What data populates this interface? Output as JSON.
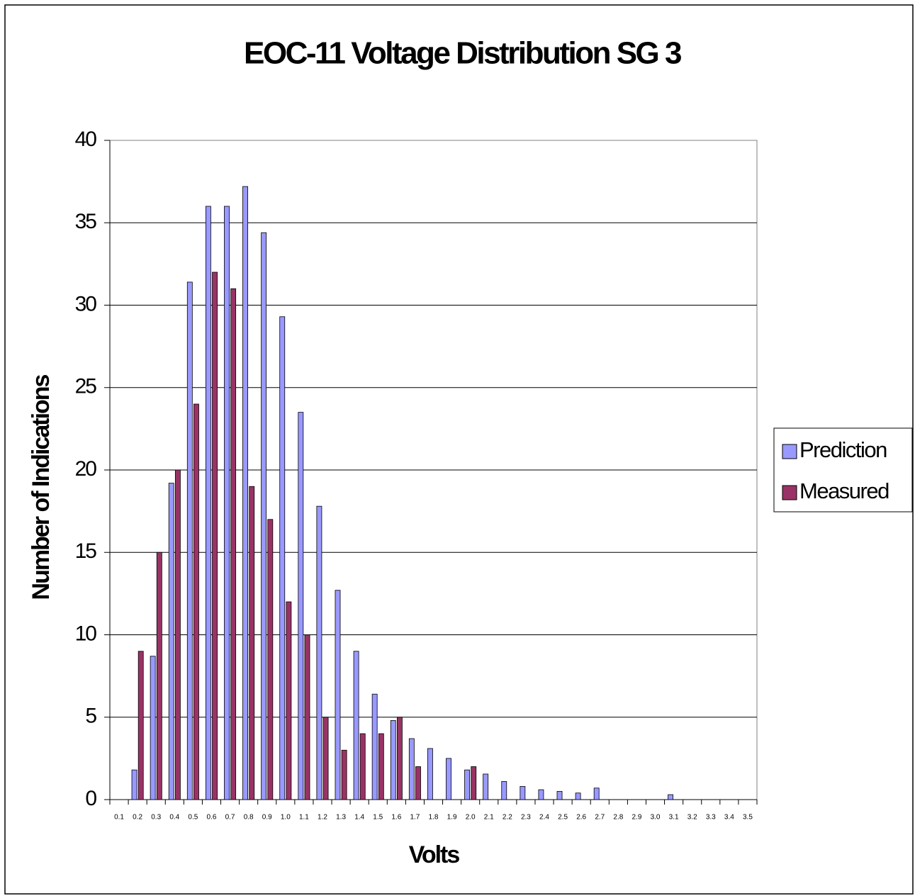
{
  "chart_data": {
    "type": "bar",
    "title": "EOC-11 Voltage Distribution SG 3",
    "x_label": "Volts",
    "y_label": "Number of Indications",
    "categories": [
      "0.1",
      "0.2",
      "0.3",
      "0.4",
      "0.5",
      "0.6",
      "0.7",
      "0.8",
      "0.9",
      "1.0",
      "1.1",
      "1.2",
      "1.3",
      "1.4",
      "1.5",
      "1.6",
      "1.7",
      "1.8",
      "1.9",
      "2.0",
      "2.1",
      "2.2",
      "2.3",
      "2.4",
      "2.5",
      "2.6",
      "2.7",
      "2.8",
      "2.9",
      "3.0",
      "3.1",
      "3.2",
      "3.3",
      "3.4",
      "3.5"
    ],
    "series": [
      {
        "name": "Prediction",
        "color": "#9999ff",
        "values": [
          0,
          1.8,
          8.7,
          19.2,
          31.4,
          36,
          36,
          37.2,
          34.4,
          29.3,
          23.5,
          17.8,
          12.7,
          9,
          6.4,
          4.8,
          3.7,
          3.1,
          2.5,
          1.8,
          1.55,
          1.1,
          0.8,
          0.6,
          0.5,
          0.4,
          0.7,
          0,
          0,
          0,
          0.3,
          0,
          0,
          0,
          0
        ]
      },
      {
        "name": "Measured",
        "color": "#993366",
        "values": [
          0,
          9,
          15,
          20,
          24,
          32,
          31,
          19,
          17,
          12,
          10,
          5,
          3,
          4,
          4,
          5,
          2,
          0,
          0,
          2,
          0,
          0,
          0,
          0,
          0,
          0,
          0,
          0,
          0,
          0,
          0,
          0,
          0,
          0,
          0
        ]
      }
    ],
    "ylim": [
      0,
      40
    ],
    "yticks": [
      0,
      5,
      10,
      15,
      20,
      25,
      30,
      35,
      40
    ],
    "grid": true,
    "legend": "right"
  }
}
